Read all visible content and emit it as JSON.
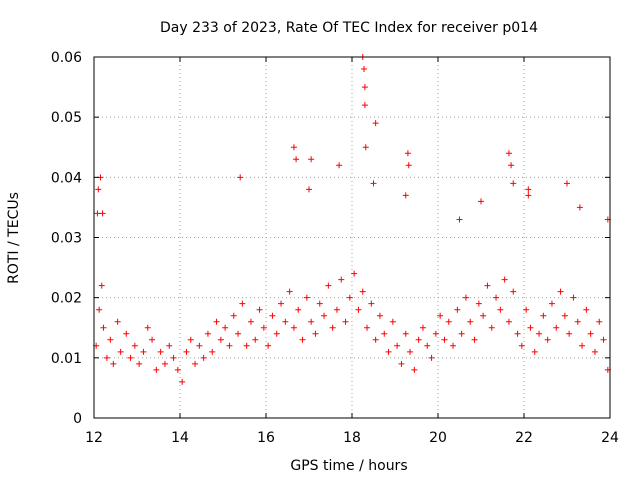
{
  "chart_data": {
    "type": "scatter",
    "title": "Day 233 of 2023, Rate Of TEC Index for receiver p014",
    "xlabel": "GPS time / hours",
    "ylabel": "ROTI / TECUs",
    "xlim": [
      12,
      24
    ],
    "ylim": [
      0,
      0.06
    ],
    "x_ticks": [
      "12",
      "14",
      "16",
      "18",
      "20",
      "22",
      "24"
    ],
    "y_ticks": [
      "0",
      "0.01",
      "0.02",
      "0.03",
      "0.04",
      "0.05",
      "0.06"
    ],
    "x_tick_values": [
      12,
      14,
      16,
      18,
      20,
      22,
      24
    ],
    "y_tick_values": [
      0,
      0.01,
      0.02,
      0.03,
      0.04,
      0.05,
      0.06
    ],
    "grid": true,
    "marker": "plus",
    "color": "#ff0000",
    "series": [
      {
        "name": "ROTI",
        "x": [
          12.05,
          12.12,
          12.18,
          12.22,
          12.3,
          12.38,
          12.45,
          12.55,
          12.62,
          12.75,
          12.85,
          12.95,
          13.05,
          13.15,
          13.25,
          13.35,
          13.45,
          13.55,
          13.65,
          13.75,
          13.85,
          13.95,
          14.05,
          14.15,
          14.25,
          14.35,
          14.45,
          14.55,
          14.65,
          14.75,
          14.85,
          14.95,
          15.05,
          15.15,
          15.25,
          15.35,
          15.45,
          15.55,
          15.65,
          15.75,
          15.85,
          15.95,
          16.05,
          16.15,
          16.25,
          16.35,
          16.45,
          16.55,
          16.65,
          16.75,
          16.85,
          16.95,
          17.05,
          17.15,
          17.25,
          17.35,
          17.45,
          17.55,
          17.65,
          17.75,
          17.85,
          17.95,
          18.05,
          18.15,
          18.25,
          18.35,
          18.45,
          18.55,
          18.65,
          18.75,
          18.85,
          18.95,
          19.05,
          19.15,
          19.25,
          19.35,
          19.45,
          19.55,
          19.65,
          19.75,
          19.85,
          19.95,
          20.05,
          20.15,
          20.25,
          20.35,
          20.45,
          20.55,
          20.65,
          20.75,
          20.85,
          20.95,
          21.05,
          21.15,
          21.25,
          21.35,
          21.45,
          21.55,
          21.65,
          21.75,
          21.85,
          21.95,
          22.05,
          22.15,
          22.25,
          22.35,
          22.45,
          22.55,
          22.65,
          22.75,
          22.85,
          22.95,
          23.05,
          23.15,
          23.25,
          23.35,
          23.45,
          23.55,
          23.65,
          23.75,
          23.85,
          23.95,
          12.1,
          12.15,
          12.2,
          16.65,
          16.7,
          17.05,
          17.7,
          18.25,
          18.28,
          18.3,
          18.3,
          18.32,
          18.55,
          19.3,
          19.32,
          21.65,
          21.7,
          21.75,
          22.1,
          23.0,
          23.3,
          12.08,
          15.4,
          17.0,
          18.5,
          19.25,
          20.5,
          21.0,
          22.1,
          23.95
        ],
        "y": [
          0.012,
          0.018,
          0.022,
          0.015,
          0.01,
          0.013,
          0.009,
          0.016,
          0.011,
          0.014,
          0.01,
          0.012,
          0.009,
          0.011,
          0.015,
          0.013,
          0.008,
          0.011,
          0.009,
          0.012,
          0.01,
          0.008,
          0.006,
          0.011,
          0.013,
          0.009,
          0.012,
          0.01,
          0.014,
          0.011,
          0.016,
          0.013,
          0.015,
          0.012,
          0.017,
          0.014,
          0.019,
          0.012,
          0.016,
          0.013,
          0.018,
          0.015,
          0.012,
          0.017,
          0.014,
          0.019,
          0.016,
          0.021,
          0.015,
          0.018,
          0.013,
          0.02,
          0.016,
          0.014,
          0.019,
          0.017,
          0.022,
          0.015,
          0.018,
          0.023,
          0.016,
          0.02,
          0.024,
          0.018,
          0.021,
          0.015,
          0.019,
          0.013,
          0.017,
          0.014,
          0.011,
          0.016,
          0.012,
          0.009,
          0.014,
          0.011,
          0.008,
          0.013,
          0.015,
          0.012,
          0.01,
          0.014,
          0.017,
          0.013,
          0.016,
          0.012,
          0.018,
          0.014,
          0.02,
          0.016,
          0.013,
          0.019,
          0.017,
          0.022,
          0.015,
          0.02,
          0.018,
          0.023,
          0.016,
          0.021,
          0.014,
          0.012,
          0.018,
          0.015,
          0.011,
          0.014,
          0.017,
          0.013,
          0.019,
          0.015,
          0.021,
          0.017,
          0.014,
          0.02,
          0.016,
          0.012,
          0.018,
          0.014,
          0.011,
          0.016,
          0.013,
          0.008,
          0.038,
          0.04,
          0.034,
          0.045,
          0.043,
          0.043,
          0.042,
          0.06,
          0.058,
          0.055,
          0.052,
          0.045,
          0.049,
          0.044,
          0.042,
          0.044,
          0.042,
          0.039,
          0.037,
          0.039,
          0.035,
          0.034,
          0.04,
          0.038,
          0.039,
          0.037,
          0.033,
          0.036,
          0.038,
          0.033
        ]
      }
    ]
  }
}
